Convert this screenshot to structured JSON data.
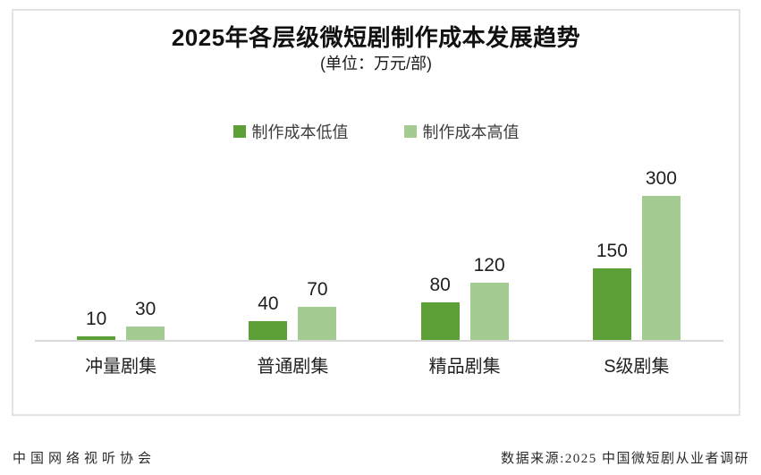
{
  "header": {
    "title": "2025年各层级微短剧制作成本发展趋势",
    "subtitle": "(单位：万元/部)"
  },
  "legend": {
    "low_label": "制作成本低值",
    "high_label": "制作成本高值"
  },
  "colors": {
    "low": "#5ca037",
    "high": "#a4cc92",
    "axis": "#d9d9d9",
    "border": "#e3e3e3"
  },
  "chart_data": {
    "type": "bar",
    "title": "2025年各层级微短剧制作成本发展趋势",
    "subtitle": "(单位：万元/部)",
    "unit": "万元/部",
    "categories": [
      "冲量剧集",
      "普通剧集",
      "精品剧集",
      "S级剧集"
    ],
    "series": [
      {
        "name": "制作成本低值",
        "color": "#5ca037",
        "values": [
          10,
          40,
          80,
          150
        ]
      },
      {
        "name": "制作成本高值",
        "color": "#a4cc92",
        "values": [
          30,
          70,
          120,
          300
        ]
      }
    ],
    "ylim": [
      0,
      300
    ],
    "grid": false,
    "legend_position": "top",
    "data_labels": true,
    "axis_labels_hidden": true
  },
  "footer": {
    "left": "中国网络视听协会",
    "right": "数据来源:2025 中国微短剧从业者调研"
  }
}
